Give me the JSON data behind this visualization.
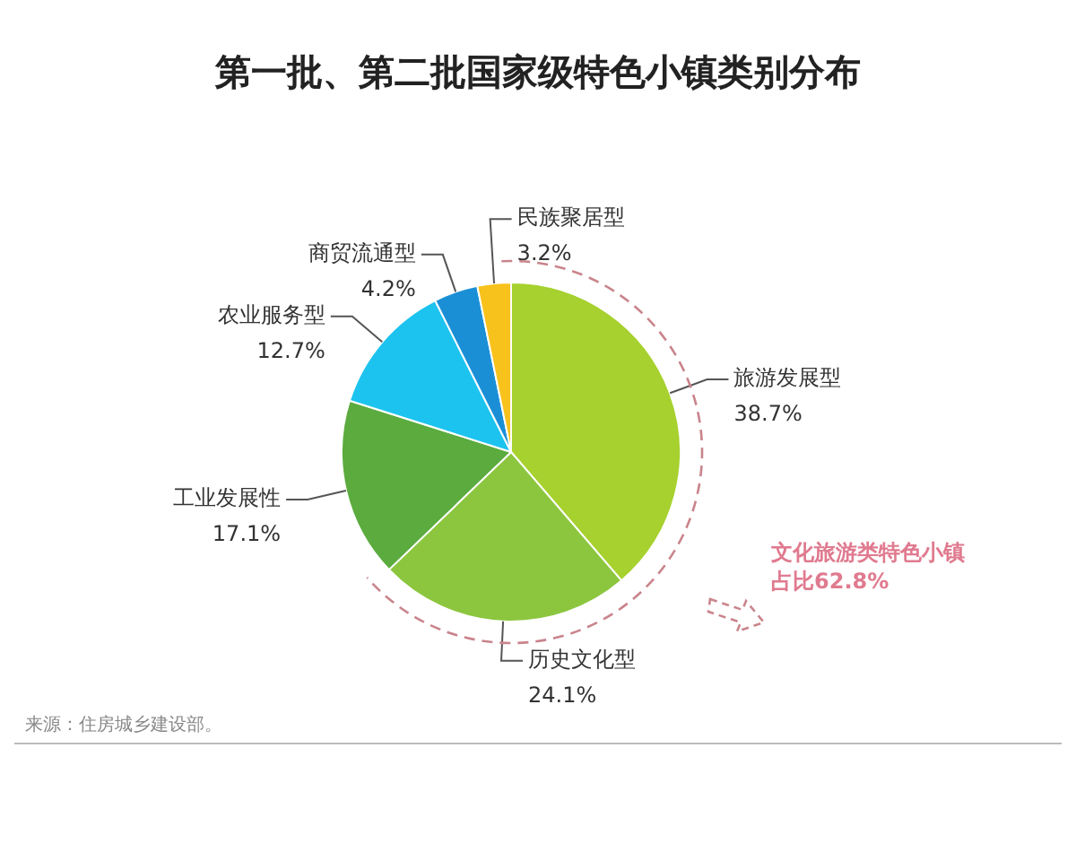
{
  "chart_data": {
    "type": "pie",
    "title": "第一批、第二批国家级特色小镇类别分布",
    "categories": [
      "旅游发展型",
      "历史文化型",
      "工业发展性",
      "农业服务型",
      "商贸流通型",
      "民族聚居型"
    ],
    "values": [
      38.7,
      24.1,
      17.1,
      12.7,
      4.2,
      3.2
    ],
    "value_labels": [
      "38.7%",
      "24.1%",
      "17.1%",
      "12.7%",
      "4.2%",
      "3.2%"
    ],
    "colors": [
      "#a6d12e",
      "#8cc63f",
      "#5bab3e",
      "#1dc3ef",
      "#1b8fd6",
      "#f8c21c"
    ],
    "legend": false,
    "annotations": [
      "文化旅游类特色小镇占比62.8%",
      "来源：住房城乡建设部。"
    ]
  }
}
